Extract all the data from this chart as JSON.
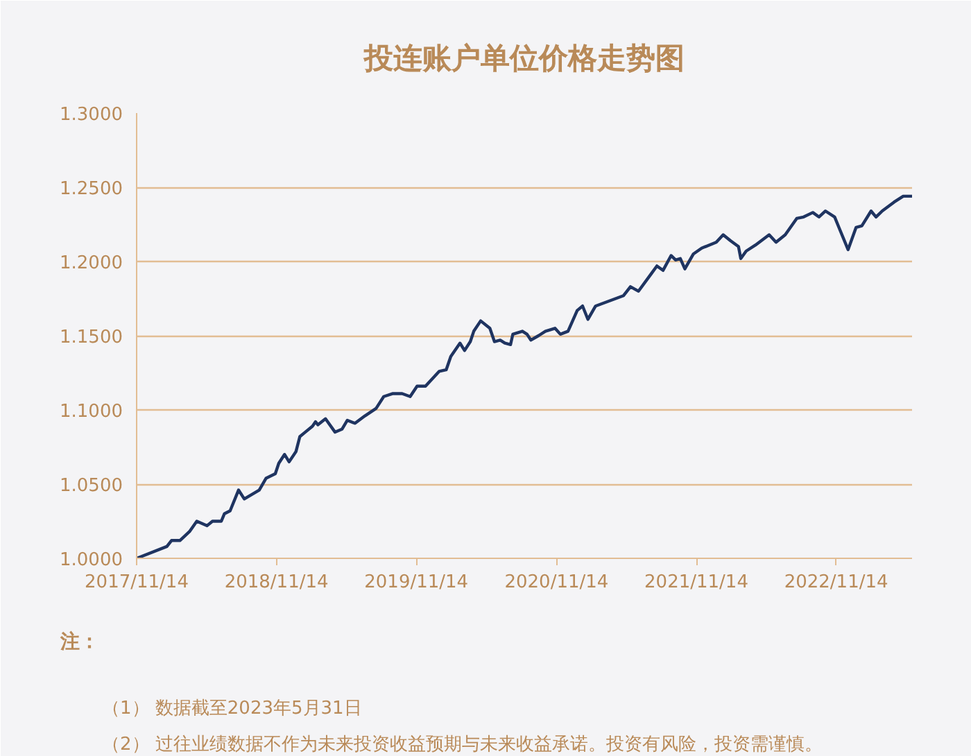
{
  "chart_data": {
    "type": "line",
    "title": "投连账户单位价格走势图",
    "annotations": [
      "注：",
      "（1） 数据截至2023年5月31日",
      "（2） 过往业绩数据不作为未来投资收益预期与未来收益承诺。投资有风险，投资需谨慎。"
    ],
    "x": [
      "2017-11-14",
      "2018-02-01",
      "2018-02-13",
      "2018-03-07",
      "2018-04-01",
      "2018-04-20",
      "2018-05-17",
      "2018-05-31",
      "2018-06-23",
      "2018-07-01",
      "2018-07-16",
      "2018-08-07",
      "2018-08-22",
      "2018-09-30",
      "2018-10-18",
      "2018-11-11",
      "2018-11-20",
      "2018-12-05",
      "2018-12-17",
      "2019-01-04",
      "2019-01-14",
      "2019-01-28",
      "2019-02-16",
      "2019-02-24",
      "2019-03-02",
      "2019-03-22",
      "2019-04-16",
      "2019-05-04",
      "2019-05-18",
      "2019-06-07",
      "2019-07-03",
      "2019-08-01",
      "2019-08-21",
      "2019-09-14",
      "2019-10-08",
      "2019-10-29",
      "2019-11-16",
      "2019-12-08",
      "2020-01-13",
      "2020-01-31",
      "2020-02-12",
      "2020-03-07",
      "2020-03-19",
      "2020-04-03",
      "2020-04-12",
      "2020-04-30",
      "2020-05-24",
      "2020-06-05",
      "2020-06-20",
      "2020-07-02",
      "2020-07-17",
      "2020-07-23",
      "2020-08-17",
      "2020-08-29",
      "2020-09-08",
      "2020-09-28",
      "2020-10-16",
      "2020-11-10",
      "2020-11-24",
      "2020-12-14",
      "2021-01-07",
      "2021-01-21",
      "2021-02-04",
      "2021-02-24",
      "2021-05-08",
      "2021-05-26",
      "2021-06-16",
      "2021-07-20",
      "2021-08-03",
      "2021-08-19",
      "2021-09-09",
      "2021-09-21",
      "2021-10-03",
      "2021-10-15",
      "2021-11-06",
      "2021-11-28",
      "2022-01-05",
      "2022-01-23",
      "2022-02-11",
      "2022-03-04",
      "2022-03-10",
      "2022-03-24",
      "2022-04-17",
      "2022-05-23",
      "2022-06-10",
      "2022-07-04",
      "2022-08-03",
      "2022-08-21",
      "2022-09-14",
      "2022-09-30",
      "2022-10-17",
      "2022-11-10",
      "2022-11-21",
      "2022-12-15",
      "2023-01-05",
      "2023-01-20",
      "2023-02-13",
      "2023-02-26",
      "2023-03-14",
      "2023-04-14",
      "2023-05-08",
      "2023-05-31"
    ],
    "series": [
      {
        "color": "#1f3461",
        "values": [
          1.0,
          1.008,
          1.012,
          1.012,
          1.018,
          1.025,
          1.022,
          1.025,
          1.025,
          1.03,
          1.032,
          1.046,
          1.04,
          1.046,
          1.054,
          1.057,
          1.064,
          1.07,
          1.065,
          1.072,
          1.082,
          1.085,
          1.089,
          1.092,
          1.09,
          1.094,
          1.085,
          1.087,
          1.093,
          1.091,
          1.096,
          1.101,
          1.109,
          1.111,
          1.111,
          1.109,
          1.116,
          1.116,
          1.126,
          1.127,
          1.136,
          1.145,
          1.14,
          1.146,
          1.153,
          1.16,
          1.155,
          1.146,
          1.147,
          1.145,
          1.144,
          1.151,
          1.153,
          1.151,
          1.147,
          1.15,
          1.153,
          1.155,
          1.151,
          1.153,
          1.167,
          1.17,
          1.161,
          1.17,
          1.177,
          1.183,
          1.18,
          1.192,
          1.197,
          1.194,
          1.204,
          1.201,
          1.202,
          1.195,
          1.205,
          1.209,
          1.213,
          1.218,
          1.214,
          1.21,
          1.202,
          1.207,
          1.211,
          1.218,
          1.213,
          1.218,
          1.229,
          1.23,
          1.233,
          1.23,
          1.234,
          1.23,
          1.223,
          1.208,
          1.223,
          1.224,
          1.234,
          1.23,
          1.234,
          1.24,
          1.244,
          1.244
        ]
      }
    ],
    "xlim": [
      "2017-11-14",
      "2023-05-31"
    ],
    "xticks": [
      {
        "value": "2017-11-14",
        "label": "2017/11/14"
      },
      {
        "value": "2018-11-14",
        "label": "2018/11/14"
      },
      {
        "value": "2019-11-14",
        "label": "2019/11/14"
      },
      {
        "value": "2020-11-14",
        "label": "2020/11/14"
      },
      {
        "value": "2021-11-14",
        "label": "2021/11/14"
      },
      {
        "value": "2022-11-14",
        "label": "2022/11/14"
      }
    ],
    "ylim": [
      1.0,
      1.3
    ],
    "yticks": [
      {
        "value": 1.0,
        "label": "1.0000"
      },
      {
        "value": 1.05,
        "label": "1.0500"
      },
      {
        "value": 1.1,
        "label": "1.1000"
      },
      {
        "value": 1.15,
        "label": "1.1500"
      },
      {
        "value": 1.2,
        "label": "1.2000"
      },
      {
        "value": 1.25,
        "label": "1.2500"
      },
      {
        "value": 1.3,
        "label": "1.3000"
      }
    ],
    "grid": "y",
    "marker": "none",
    "line_style": "solid"
  }
}
